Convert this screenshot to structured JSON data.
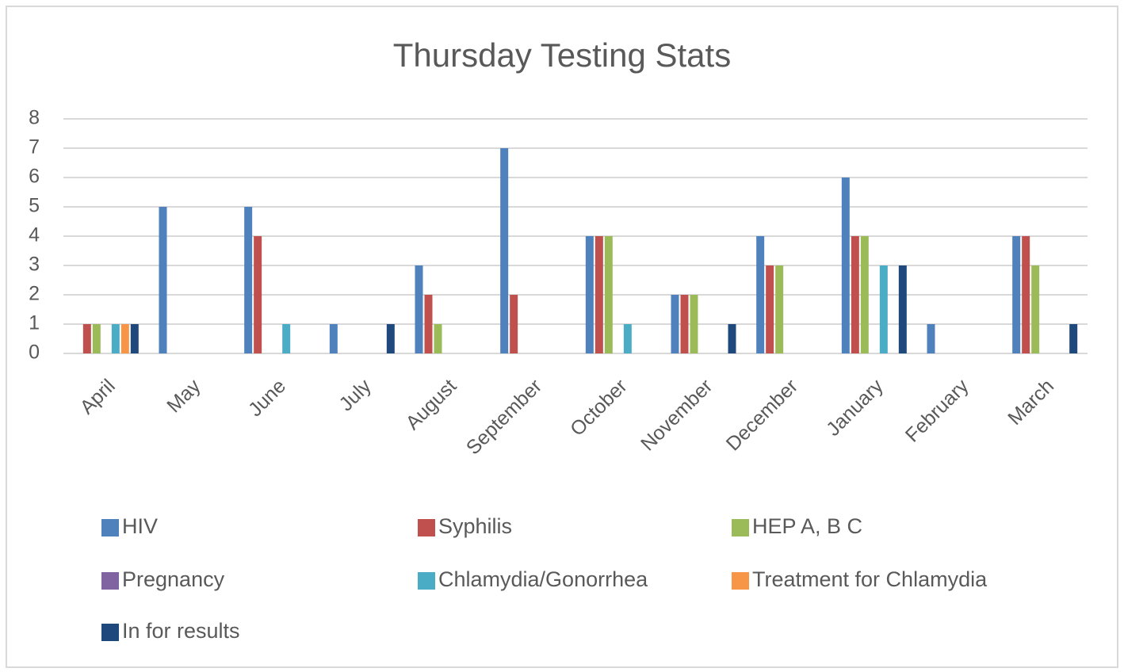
{
  "chart_data": {
    "type": "bar",
    "title": "Thursday Testing Stats",
    "categories": [
      "April",
      "May",
      "June",
      "July",
      "August",
      "September",
      "October",
      "November",
      "December",
      "January",
      "February",
      "March"
    ],
    "series": [
      {
        "name": "HIV",
        "color": "#4f81bd",
        "values": [
          0,
          5,
          5,
          1,
          3,
          7,
          4,
          2,
          4,
          6,
          1,
          4
        ]
      },
      {
        "name": "Syphilis",
        "color": "#c0504d",
        "values": [
          1,
          0,
          4,
          0,
          2,
          2,
          4,
          2,
          3,
          4,
          0,
          4
        ]
      },
      {
        "name": "HEP A, B C",
        "color": "#9bbb59",
        "values": [
          1,
          0,
          0,
          0,
          1,
          0,
          4,
          2,
          3,
          4,
          0,
          3
        ]
      },
      {
        "name": "Pregnancy",
        "color": "#8064a2",
        "values": [
          0,
          0,
          0,
          0,
          0,
          0,
          0,
          0,
          0,
          0,
          0,
          0
        ]
      },
      {
        "name": "Chlamydia/Gonorrhea",
        "color": "#4bacc6",
        "values": [
          1,
          0,
          1,
          0,
          0,
          0,
          1,
          0,
          0,
          3,
          0,
          0
        ]
      },
      {
        "name": "Treatment for Chlamydia",
        "color": "#f79646",
        "values": [
          1,
          0,
          0,
          0,
          0,
          0,
          0,
          0,
          0,
          0,
          0,
          0
        ]
      },
      {
        "name": "In for results",
        "color": "#1f497d",
        "values": [
          1,
          0,
          0,
          1,
          0,
          0,
          0,
          1,
          0,
          3,
          0,
          1
        ]
      }
    ],
    "ylim": [
      0,
      8
    ],
    "yticks": [
      0,
      1,
      2,
      3,
      4,
      5,
      6,
      7,
      8
    ],
    "grid": true,
    "legend": "bottom"
  }
}
